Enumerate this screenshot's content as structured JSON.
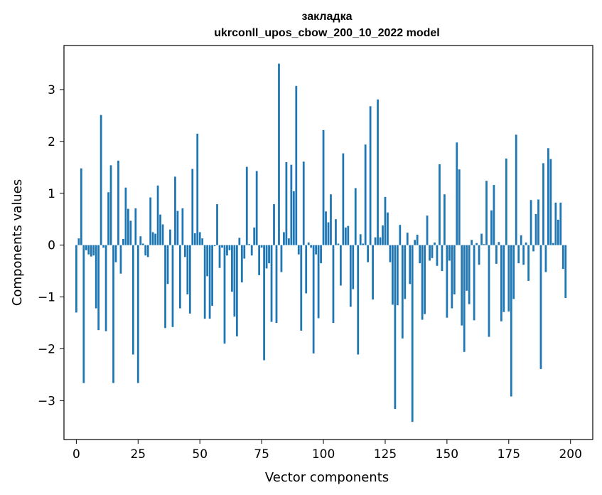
{
  "chart_data": {
    "type": "bar",
    "title": "закладка",
    "subtitle": "ukrconll_upos_cbow_200_10_2022 model",
    "xlabel": "Vector components",
    "ylabel": "Components values",
    "xlim": [
      -5,
      209
    ],
    "ylim": [
      -3.75,
      3.85
    ],
    "xticks": [
      0,
      25,
      50,
      75,
      100,
      125,
      150,
      175,
      200
    ],
    "yticks": [
      -3,
      -2,
      -1,
      0,
      1,
      2,
      3
    ],
    "xtick_labels": [
      "0",
      "25",
      "50",
      "75",
      "100",
      "125",
      "150",
      "175",
      "200"
    ],
    "ytick_labels": [
      "−3",
      "−2",
      "−1",
      "0",
      "1",
      "2",
      "3"
    ],
    "grid": false,
    "bar_color": "#1f77b4",
    "values": [
      -1.3,
      0.13,
      1.48,
      -2.66,
      -0.1,
      -0.18,
      -0.22,
      -0.2,
      -1.22,
      -1.64,
      2.51,
      -0.05,
      -1.66,
      1.02,
      1.54,
      -2.66,
      -0.33,
      1.63,
      -0.55,
      0.12,
      1.11,
      0.7,
      0.47,
      -2.11,
      0.71,
      -2.66,
      0.17,
      0.03,
      -0.2,
      -0.23,
      0.92,
      0.25,
      0.22,
      1.15,
      0.59,
      0.4,
      -1.6,
      -0.75,
      0.3,
      -1.58,
      1.32,
      0.66,
      -1.22,
      0.71,
      -0.23,
      -0.95,
      -1.32,
      1.47,
      0.23,
      2.15,
      0.25,
      0.13,
      -1.42,
      -0.6,
      -1.42,
      -1.17,
      -0.02,
      0.79,
      -0.44,
      -0.05,
      -1.9,
      -0.2,
      -0.1,
      -0.9,
      -1.38,
      -1.76,
      0.14,
      -0.72,
      -0.26,
      1.51,
      0.02,
      -0.2,
      0.34,
      1.43,
      -0.58,
      -0.05,
      -2.22,
      -0.45,
      -0.35,
      -1.48,
      0.79,
      -1.5,
      3.5,
      -0.52,
      0.25,
      1.6,
      0.13,
      1.55,
      1.04,
      3.07,
      -0.18,
      -1.65,
      1.61,
      -0.93,
      0.05,
      -0.05,
      -2.09,
      -0.18,
      -1.41,
      -0.35,
      2.22,
      0.65,
      0.44,
      0.98,
      -1.5,
      0.5,
      0.03,
      -0.78,
      1.77,
      0.34,
      0.37,
      -1.19,
      -0.85,
      1.1,
      -2.11,
      0.21,
      0.03,
      1.94,
      -0.33,
      2.68,
      -1.05,
      0.15,
      2.81,
      0.15,
      0.38,
      0.93,
      0.63,
      -0.33,
      -1.15,
      -3.16,
      -1.16,
      0.39,
      -1.8,
      -1.04,
      0.24,
      -0.75,
      -3.41,
      0.1,
      0.2,
      -0.35,
      -1.44,
      -1.33,
      0.57,
      -0.3,
      -0.25,
      0.05,
      -0.4,
      1.56,
      -0.5,
      0.98,
      -1.4,
      -0.3,
      -1.22,
      -0.95,
      1.98,
      1.46,
      -1.55,
      -2.06,
      -0.88,
      -1.14,
      0.1,
      -1.45,
      0.04,
      -0.38,
      0.22,
      0.02,
      1.24,
      -1.77,
      0.67,
      1.16,
      -0.36,
      0.06,
      -1.47,
      -1.29,
      1.67,
      -1.28,
      -2.92,
      -1.04,
      2.13,
      -0.35,
      0.19,
      -0.38,
      0.05,
      -0.69,
      0.87,
      -0.12,
      0.6,
      0.88,
      -2.39,
      1.58,
      -0.52,
      1.87,
      1.66,
      0.04,
      0.82,
      0.49,
      0.82,
      -0.46,
      -1.02,
      0.0
    ]
  }
}
